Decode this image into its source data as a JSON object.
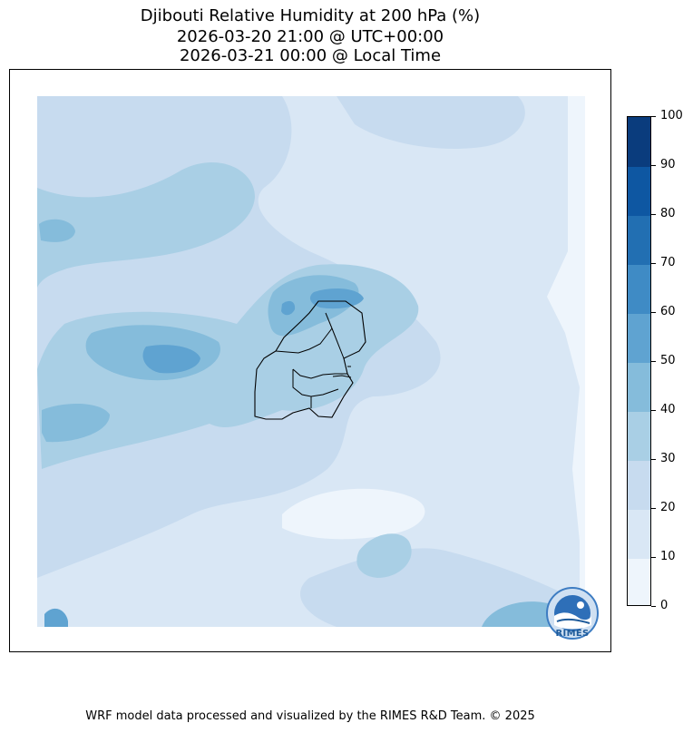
{
  "title": {
    "line1": "Djibouti Relative Humidity at 200 hPa (%)",
    "line2": "2026-03-20 21:00 @ UTC+00:00",
    "line3": "2026-03-21 00:00 @ Local Time"
  },
  "colorbar": {
    "ticks": [
      "0",
      "10",
      "20",
      "30",
      "40",
      "50",
      "60",
      "70",
      "80",
      "90",
      "100"
    ],
    "colors": [
      "#eef5fc",
      "#d9e7f5",
      "#c7dbef",
      "#a9cfe5",
      "#85bcdb",
      "#5fa3d1",
      "#3f8bc5",
      "#226fb2",
      "#0e57a2",
      "#0a3c7d"
    ]
  },
  "logo": {
    "text": "RIMES",
    "icon": "rimes-logo-icon"
  },
  "footer": "WRF model data processed and visualized by the RIMES R&D Team. © 2025"
}
